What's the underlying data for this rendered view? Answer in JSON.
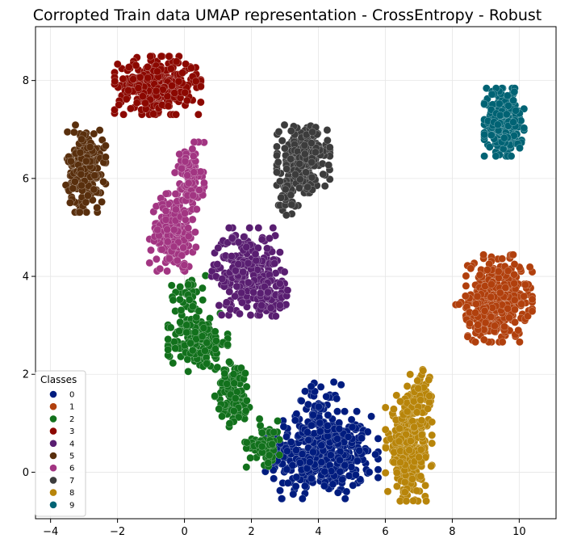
{
  "chart_data": {
    "type": "scatter",
    "title": "Corropted Train data UMAP representation - CrossEntropy - Robust",
    "xlabel": "",
    "ylabel": "",
    "xlim": [
      -4.45,
      11.1
    ],
    "ylim": [
      -0.95,
      9.1
    ],
    "xticks": [
      -4,
      -2,
      0,
      2,
      4,
      6,
      8,
      10
    ],
    "yticks": [
      0,
      2,
      4,
      6,
      8
    ],
    "grid": true,
    "legend": {
      "title": "Classes",
      "placement": "lower-left",
      "entries": [
        "0",
        "1",
        "2",
        "3",
        "4",
        "5",
        "6",
        "7",
        "8",
        "9"
      ]
    },
    "series": [
      {
        "name": "0",
        "color": "#001c7f",
        "clusters": [
          {
            "center": [
              4.1,
              0.35
            ],
            "spread": [
              0.85,
              0.45
            ],
            "n": 420
          },
          {
            "center": [
              4.0,
              1.25
            ],
            "spread": [
              0.35,
              0.3
            ],
            "n": 60
          }
        ]
      },
      {
        "name": "1",
        "color": "#b1400d",
        "clusters": [
          {
            "center": [
              9.4,
              3.55
            ],
            "spread": [
              0.5,
              0.45
            ],
            "n": 340
          },
          {
            "center": [
              8.7,
              3.2
            ],
            "spread": [
              0.3,
              0.25
            ],
            "n": 40
          }
        ]
      },
      {
        "name": "2",
        "color": "#12711c",
        "clusters": [
          {
            "center": [
              0.4,
              2.65
            ],
            "spread": [
              0.45,
              0.3
            ],
            "n": 170
          },
          {
            "center": [
              1.5,
              1.6
            ],
            "spread": [
              0.3,
              0.35
            ],
            "n": 100
          },
          {
            "center": [
              2.4,
              0.6
            ],
            "spread": [
              0.3,
              0.25
            ],
            "n": 60
          },
          {
            "center": [
              0.1,
              3.6
            ],
            "spread": [
              0.3,
              0.3
            ],
            "n": 40
          }
        ]
      },
      {
        "name": "3",
        "color": "#8c0800",
        "clusters": [
          {
            "center": [
              -0.8,
              7.9
            ],
            "spread": [
              0.65,
              0.3
            ],
            "n": 330
          }
        ]
      },
      {
        "name": "4",
        "color": "#591e71",
        "clusters": [
          {
            "center": [
              1.9,
              4.1
            ],
            "spread": [
              0.55,
              0.45
            ],
            "n": 260
          },
          {
            "center": [
              2.6,
              3.5
            ],
            "spread": [
              0.3,
              0.3
            ],
            "n": 50
          }
        ]
      },
      {
        "name": "5",
        "color": "#592f0d",
        "clusters": [
          {
            "center": [
              -2.95,
              6.2
            ],
            "spread": [
              0.3,
              0.45
            ],
            "n": 220
          }
        ]
      },
      {
        "name": "6",
        "color": "#a23582",
        "clusters": [
          {
            "center": [
              -0.35,
              4.9
            ],
            "spread": [
              0.35,
              0.4
            ],
            "n": 190
          },
          {
            "center": [
              0.15,
              5.95
            ],
            "spread": [
              0.22,
              0.4
            ],
            "n": 110
          }
        ]
      },
      {
        "name": "7",
        "color": "#3c3c3c",
        "clusters": [
          {
            "center": [
              3.55,
              6.4
            ],
            "spread": [
              0.4,
              0.35
            ],
            "n": 260
          },
          {
            "center": [
              3.0,
              5.6
            ],
            "spread": [
              0.2,
              0.3
            ],
            "n": 30
          }
        ]
      },
      {
        "name": "8",
        "color": "#b8850a",
        "clusters": [
          {
            "center": [
              6.7,
              0.5
            ],
            "spread": [
              0.35,
              0.55
            ],
            "n": 300
          },
          {
            "center": [
              7.05,
              1.5
            ],
            "spread": [
              0.2,
              0.3
            ],
            "n": 60
          }
        ]
      },
      {
        "name": "9",
        "color": "#006374",
        "clusters": [
          {
            "center": [
              9.55,
              7.15
            ],
            "spread": [
              0.3,
              0.35
            ],
            "n": 260
          }
        ]
      }
    ]
  }
}
